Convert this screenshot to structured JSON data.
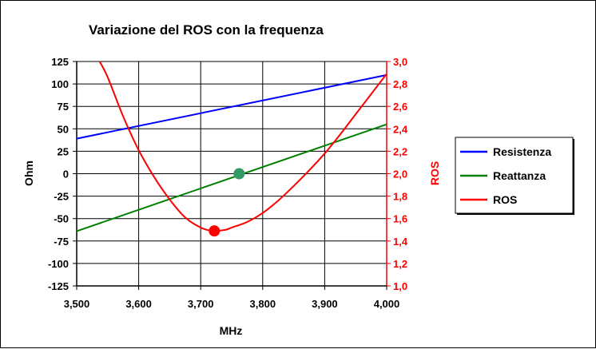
{
  "chart_data": {
    "type": "line",
    "title": "Variazione del ROS con la frequenza",
    "xlabel": "MHz",
    "ylabel_left": "Ohm",
    "ylabel_right": "ROS",
    "x_ticks": [
      "3,500",
      "3,600",
      "3,700",
      "3,800",
      "3,900",
      "4,000"
    ],
    "xlim": [
      3.5,
      4.0
    ],
    "y_left_ticks": [
      "125",
      "100",
      "75",
      "50",
      "25",
      "0",
      "-25",
      "-50",
      "-75",
      "-100",
      "-125"
    ],
    "ylim_left": [
      -125,
      125
    ],
    "y_right_ticks": [
      "3,0",
      "2,8",
      "2,6",
      "2,4",
      "2,2",
      "2,0",
      "1,8",
      "1,6",
      "1,4",
      "1,2",
      "1,0"
    ],
    "ylim_right": [
      1.0,
      3.0
    ],
    "grid": true,
    "legend_position": "right",
    "series": [
      {
        "name": "Resistenza",
        "axis": "left",
        "color": "#0000ff",
        "x": [
          3.5,
          4.0
        ],
        "y": [
          39,
          110
        ]
      },
      {
        "name": "Reattanza",
        "axis": "left",
        "color": "#008000",
        "x": [
          3.5,
          4.0
        ],
        "y": [
          -64,
          55
        ],
        "marker": {
          "x": 3.762,
          "y": 0,
          "color": "#339966"
        }
      },
      {
        "name": "ROS",
        "axis": "right",
        "color": "#ff0000",
        "x": [
          3.537,
          3.55,
          3.575,
          3.6,
          3.625,
          3.65,
          3.675,
          3.7,
          3.72,
          3.74,
          3.75,
          3.775,
          3.8,
          3.825,
          3.85,
          3.875,
          3.9,
          3.925,
          3.95,
          3.975,
          4.0
        ],
        "y": [
          3.0,
          2.86,
          2.51,
          2.21,
          1.97,
          1.77,
          1.61,
          1.52,
          1.49,
          1.5,
          1.52,
          1.57,
          1.65,
          1.76,
          1.89,
          2.03,
          2.18,
          2.35,
          2.53,
          2.71,
          2.89
        ],
        "marker": {
          "x": 3.722,
          "y": 1.49,
          "color": "#ff0000"
        }
      }
    ]
  }
}
